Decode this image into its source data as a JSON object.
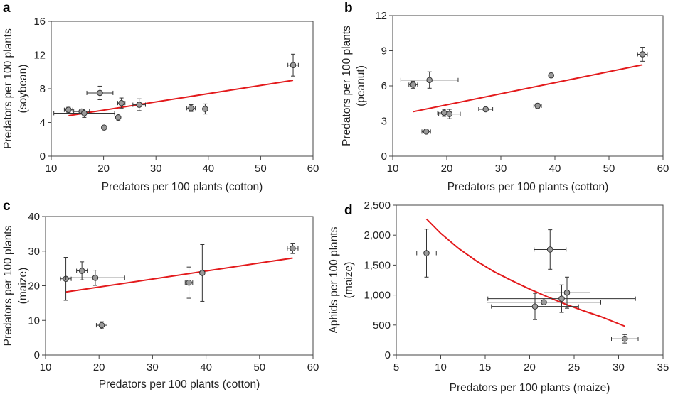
{
  "colors": {
    "fit_line": "#e31a1c",
    "marker_fill": "#9a9a9a",
    "marker_stroke": "#333333"
  },
  "chart_data": [
    {
      "panel": "a",
      "type": "scatter",
      "xlabel": "Predators per 100 plants (cotton)",
      "ylabel": [
        "Predators per 100 plants",
        "(soybean)"
      ],
      "xlim": [
        10,
        60
      ],
      "ylim": [
        0,
        16
      ],
      "xticks": [
        10,
        20,
        30,
        40,
        50,
        60
      ],
      "yticks": [
        0,
        4,
        8,
        12,
        16
      ],
      "points": [
        {
          "x": 13.3,
          "y": 5.5,
          "xerr": 0.8,
          "yerr": 0.3
        },
        {
          "x": 15.8,
          "y": 5.3,
          "xerr": 1.5,
          "yerr": 0.2
        },
        {
          "x": 16.3,
          "y": 5.1,
          "xerr": 5.8,
          "yerr": 0.5
        },
        {
          "x": 19.3,
          "y": 7.5,
          "xerr": 2.5,
          "yerr": 0.8
        },
        {
          "x": 20.1,
          "y": 3.4
        },
        {
          "x": 22.8,
          "y": 4.6,
          "yerr": 0.4
        },
        {
          "x": 23.4,
          "y": 6.3,
          "xerr": 0.7,
          "yerr": 0.6
        },
        {
          "x": 26.8,
          "y": 6.1,
          "xerr": 1.2,
          "yerr": 0.7
        },
        {
          "x": 36.7,
          "y": 5.7,
          "xerr": 0.8,
          "yerr": 0.4
        },
        {
          "x": 39.4,
          "y": 5.6,
          "yerr": 0.6
        },
        {
          "x": 56.2,
          "y": 10.8,
          "xerr": 1.0,
          "yerr": 1.3
        }
      ],
      "fit": {
        "x": [
          13.3,
          56.2
        ],
        "y": [
          4.8,
          9.0
        ]
      }
    },
    {
      "panel": "b",
      "type": "scatter",
      "xlabel": "Predators per 100 plants (cotton)",
      "ylabel": [
        "Predators per 100 plants",
        "(peanut)"
      ],
      "xlim": [
        10,
        60
      ],
      "ylim": [
        0,
        12
      ],
      "xticks": [
        10,
        20,
        30,
        40,
        50,
        60
      ],
      "yticks": [
        0,
        3,
        6,
        9,
        12
      ],
      "points": [
        {
          "x": 13.8,
          "y": 6.1,
          "xerr": 0.8,
          "yerr": 0.3
        },
        {
          "x": 16.8,
          "y": 6.5,
          "xerr": 5.3,
          "yerr": 0.7
        },
        {
          "x": 16.2,
          "y": 2.1,
          "xerr": 0.8
        },
        {
          "x": 19.5,
          "y": 3.7,
          "xerr": 1.2,
          "yerr": 0.3
        },
        {
          "x": 20.5,
          "y": 3.6,
          "xerr": 2.0,
          "yerr": 0.4
        },
        {
          "x": 27.2,
          "y": 4.0,
          "xerr": 1.3
        },
        {
          "x": 36.8,
          "y": 4.3,
          "xerr": 0.7,
          "yerr": 0.2
        },
        {
          "x": 39.3,
          "y": 6.9
        },
        {
          "x": 56.2,
          "y": 8.7,
          "xerr": 0.9,
          "yerr": 0.6
        }
      ],
      "fit": {
        "x": [
          13.8,
          56.2
        ],
        "y": [
          3.8,
          7.8
        ]
      }
    },
    {
      "panel": "c",
      "type": "scatter",
      "xlabel": "Predators per 100 plants (cotton)",
      "ylabel": [
        "Predators per 100 plants",
        "(maize)"
      ],
      "xlim": [
        10,
        60
      ],
      "ylim": [
        0,
        40
      ],
      "xticks": [
        10,
        20,
        30,
        40,
        50,
        60
      ],
      "yticks": [
        0,
        10,
        20,
        30,
        40
      ],
      "points": [
        {
          "x": 13.8,
          "y": 22.0,
          "xerr": 1.0,
          "yerr": 6.2
        },
        {
          "x": 16.8,
          "y": 24.3,
          "xerr": 1.0,
          "yerr": 2.6
        },
        {
          "x": 19.3,
          "y": 22.3,
          "xerr": 5.5,
          "yerr": 2.2
        },
        {
          "x": 20.5,
          "y": 8.6,
          "xerr": 1.0,
          "yerr": 1.0
        },
        {
          "x": 36.8,
          "y": 20.9,
          "xerr": 0.7,
          "yerr": 4.5
        },
        {
          "x": 39.3,
          "y": 23.7,
          "yerr": 8.2
        },
        {
          "x": 56.2,
          "y": 30.8,
          "xerr": 1.0,
          "yerr": 1.5
        }
      ],
      "fit": {
        "x": [
          13.8,
          56.2
        ],
        "y": [
          18.2,
          28.0
        ]
      }
    },
    {
      "panel": "d",
      "type": "scatter",
      "xlabel": "Predators per 100 plants (maize)",
      "ylabel": [
        "Aphids per 100 plants",
        "(maize)"
      ],
      "xlim": [
        5,
        35
      ],
      "ylim": [
        0,
        2500
      ],
      "xticks": [
        5,
        10,
        15,
        20,
        25,
        30,
        35
      ],
      "yticks": [
        0,
        500,
        1000,
        1500,
        2000,
        2500
      ],
      "ytick_labels": [
        "0",
        "500",
        "1,000",
        "1,500",
        "2,000",
        "2,500"
      ],
      "points": [
        {
          "x": 8.4,
          "y": 1700,
          "xerr": 1.1,
          "yerr": 400
        },
        {
          "x": 20.6,
          "y": 810,
          "xerr": 4.9,
          "yerr": 220
        },
        {
          "x": 21.6,
          "y": 880,
          "xerr": 6.4,
          "yerr": 0
        },
        {
          "x": 22.3,
          "y": 1760,
          "xerr": 1.8,
          "yerr": 330
        },
        {
          "x": 23.6,
          "y": 940,
          "xerr": 8.3,
          "yerr": 230
        },
        {
          "x": 24.2,
          "y": 1040,
          "xerr": 2.6,
          "yerr": 260
        },
        {
          "x": 30.7,
          "y": 270,
          "xerr": 1.5,
          "yerr": 70
        }
      ],
      "fit": {
        "x": [
          8.4,
          10,
          12,
          14,
          16,
          18,
          20,
          22,
          24,
          26,
          28,
          30.7
        ],
        "y": [
          2270,
          2030,
          1780,
          1570,
          1390,
          1240,
          1100,
          970,
          850,
          740,
          640,
          480
        ]
      }
    }
  ]
}
